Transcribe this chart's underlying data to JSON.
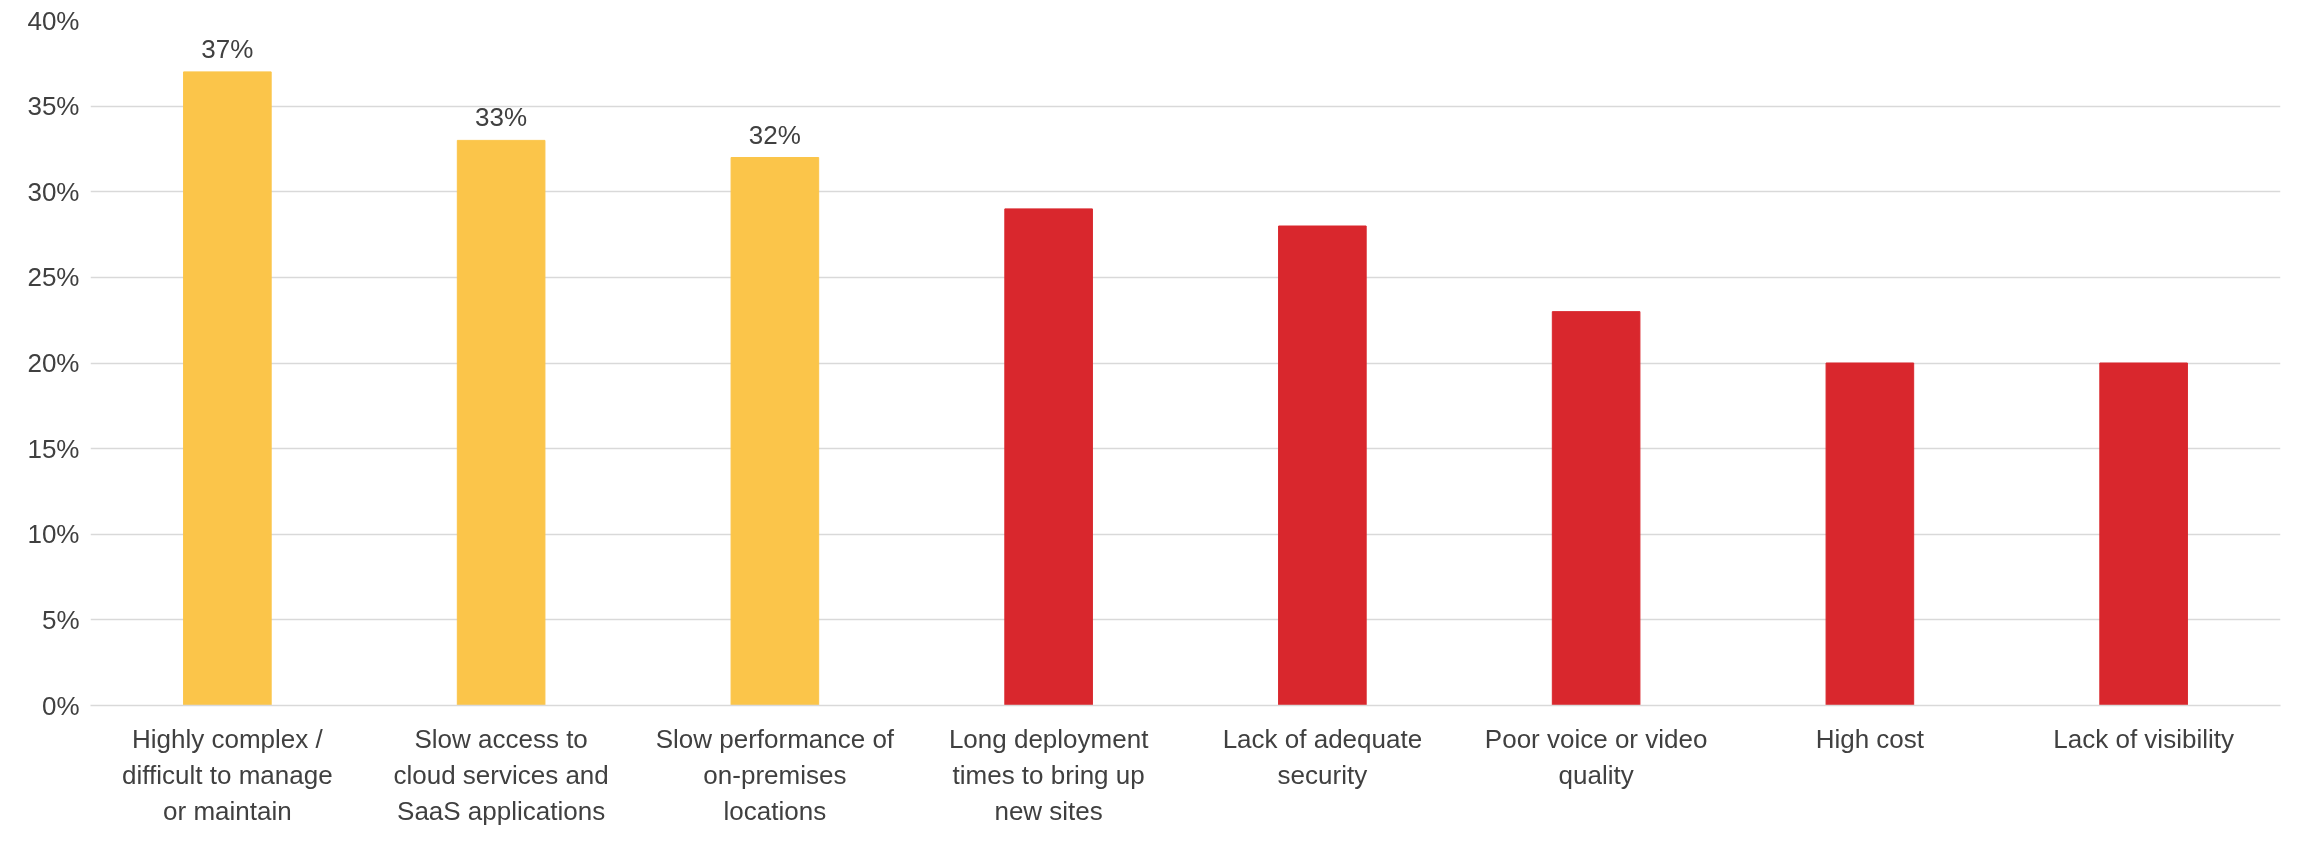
{
  "chart_data": {
    "type": "bar",
    "categories": [
      "Highly complex / difficult to manage or maintain",
      "Slow access to cloud services and SaaS applications",
      "Slow performance of on-premises locations",
      "Long deployment times to bring up new sites",
      "Lack of adequate security",
      "Poor voice or video quality",
      "High cost",
      "Lack of visibility"
    ],
    "values": [
      37,
      33,
      32,
      29,
      28,
      23,
      20,
      20
    ],
    "colors": [
      "#fbc54a",
      "#fbc54a",
      "#fbc54a",
      "#d9272d",
      "#d9272d",
      "#d9272d",
      "#d9272d",
      "#d9272d"
    ],
    "value_labels": [
      "37%",
      "33%",
      "32%",
      null,
      null,
      null,
      null,
      null
    ],
    "ylim": [
      0,
      40
    ],
    "yticks": [
      {
        "value": 0,
        "label": "0%"
      },
      {
        "value": 5,
        "label": "5%"
      },
      {
        "value": 10,
        "label": "10%"
      },
      {
        "value": 15,
        "label": "15%"
      },
      {
        "value": 20,
        "label": "20%"
      },
      {
        "value": 25,
        "label": "25%"
      },
      {
        "value": 30,
        "label": "30%"
      },
      {
        "value": 35,
        "label": "35%"
      },
      {
        "value": 40,
        "label": "40%"
      }
    ],
    "grid": "y"
  }
}
